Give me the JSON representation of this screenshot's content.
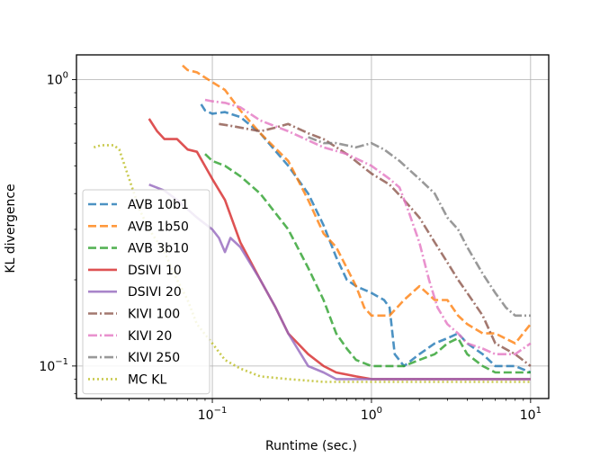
{
  "chart_data": {
    "type": "line",
    "xlabel": "Runtime (sec.)",
    "ylabel": "KL divergence",
    "xscale": "log",
    "yscale": "log",
    "xlim": [
      0.014,
      13
    ],
    "ylim": [
      0.077,
      1.22
    ],
    "grid": true,
    "legend_position": "lower-left",
    "x_ticks": [
      {
        "value": 0.1,
        "base": "10",
        "exp": "−1"
      },
      {
        "value": 1,
        "base": "10",
        "exp": "0"
      },
      {
        "value": 10,
        "base": "10",
        "exp": "1"
      }
    ],
    "y_ticks": [
      {
        "value": 0.1,
        "base": "10",
        "exp": "−1"
      },
      {
        "value": 1,
        "base": "10",
        "exp": "0"
      }
    ],
    "series": [
      {
        "name": "AVB 10b1",
        "color": "#1f77b4",
        "dash": "dashed",
        "points": [
          [
            0.085,
            0.82
          ],
          [
            0.09,
            0.78
          ],
          [
            0.1,
            0.76
          ],
          [
            0.12,
            0.77
          ],
          [
            0.15,
            0.74
          ],
          [
            0.2,
            0.65
          ],
          [
            0.3,
            0.5
          ],
          [
            0.4,
            0.4
          ],
          [
            0.5,
            0.31
          ],
          [
            0.6,
            0.24
          ],
          [
            0.7,
            0.2
          ],
          [
            0.8,
            0.19
          ],
          [
            1.0,
            0.18
          ],
          [
            1.2,
            0.17
          ],
          [
            1.3,
            0.16
          ],
          [
            1.4,
            0.11
          ],
          [
            1.6,
            0.1
          ],
          [
            2.0,
            0.11
          ],
          [
            2.5,
            0.12
          ],
          [
            3.0,
            0.125
          ],
          [
            3.5,
            0.13
          ],
          [
            4.0,
            0.12
          ],
          [
            5.0,
            0.11
          ],
          [
            6.0,
            0.1
          ],
          [
            8.0,
            0.1
          ],
          [
            10.0,
            0.095
          ]
        ]
      },
      {
        "name": "AVB 1b50",
        "color": "#ff7f0e",
        "dash": "dashed",
        "points": [
          [
            0.065,
            1.12
          ],
          [
            0.07,
            1.08
          ],
          [
            0.08,
            1.06
          ],
          [
            0.1,
            0.98
          ],
          [
            0.12,
            0.92
          ],
          [
            0.15,
            0.78
          ],
          [
            0.2,
            0.65
          ],
          [
            0.3,
            0.52
          ],
          [
            0.4,
            0.38
          ],
          [
            0.5,
            0.29
          ],
          [
            0.6,
            0.26
          ],
          [
            0.7,
            0.22
          ],
          [
            0.8,
            0.19
          ],
          [
            0.9,
            0.16
          ],
          [
            1.0,
            0.15
          ],
          [
            1.3,
            0.15
          ],
          [
            1.6,
            0.17
          ],
          [
            2.0,
            0.19
          ],
          [
            2.5,
            0.17
          ],
          [
            3.0,
            0.17
          ],
          [
            3.5,
            0.15
          ],
          [
            4.0,
            0.14
          ],
          [
            5.0,
            0.13
          ],
          [
            6.0,
            0.13
          ],
          [
            8.0,
            0.12
          ],
          [
            10.0,
            0.14
          ]
        ]
      },
      {
        "name": "AVB 3b10",
        "color": "#2ca02c",
        "dash": "dashed",
        "points": [
          [
            0.09,
            0.55
          ],
          [
            0.1,
            0.52
          ],
          [
            0.12,
            0.5
          ],
          [
            0.15,
            0.46
          ],
          [
            0.2,
            0.4
          ],
          [
            0.3,
            0.3
          ],
          [
            0.4,
            0.22
          ],
          [
            0.5,
            0.17
          ],
          [
            0.6,
            0.13
          ],
          [
            0.7,
            0.115
          ],
          [
            0.8,
            0.105
          ],
          [
            1.0,
            0.1
          ],
          [
            1.3,
            0.1
          ],
          [
            1.6,
            0.1
          ],
          [
            2.0,
            0.105
          ],
          [
            2.5,
            0.11
          ],
          [
            3.0,
            0.12
          ],
          [
            3.5,
            0.125
          ],
          [
            4.0,
            0.11
          ],
          [
            5.0,
            0.1
          ],
          [
            6.0,
            0.095
          ],
          [
            8.0,
            0.095
          ],
          [
            10.0,
            0.095
          ]
        ]
      },
      {
        "name": "DSIVI 10",
        "color": "#d62728",
        "dash": "solid",
        "points": [
          [
            0.04,
            0.73
          ],
          [
            0.045,
            0.66
          ],
          [
            0.05,
            0.62
          ],
          [
            0.06,
            0.62
          ],
          [
            0.07,
            0.57
          ],
          [
            0.08,
            0.56
          ],
          [
            0.1,
            0.45
          ],
          [
            0.12,
            0.38
          ],
          [
            0.15,
            0.27
          ],
          [
            0.2,
            0.2
          ],
          [
            0.25,
            0.16
          ],
          [
            0.3,
            0.13
          ],
          [
            0.4,
            0.11
          ],
          [
            0.5,
            0.1
          ],
          [
            0.6,
            0.095
          ],
          [
            0.8,
            0.092
          ],
          [
            1.0,
            0.09
          ],
          [
            2.0,
            0.09
          ],
          [
            5.0,
            0.09
          ],
          [
            10.0,
            0.09
          ]
        ]
      },
      {
        "name": "DSIVI 20",
        "color": "#9467bd",
        "dash": "solid",
        "points": [
          [
            0.04,
            0.43
          ],
          [
            0.05,
            0.41
          ],
          [
            0.06,
            0.38
          ],
          [
            0.08,
            0.33
          ],
          [
            0.1,
            0.3
          ],
          [
            0.11,
            0.28
          ],
          [
            0.12,
            0.25
          ],
          [
            0.13,
            0.28
          ],
          [
            0.15,
            0.26
          ],
          [
            0.2,
            0.2
          ],
          [
            0.25,
            0.16
          ],
          [
            0.3,
            0.13
          ],
          [
            0.4,
            0.1
          ],
          [
            0.5,
            0.095
          ],
          [
            0.6,
            0.09
          ],
          [
            0.8,
            0.09
          ],
          [
            1.0,
            0.09
          ],
          [
            2.0,
            0.09
          ],
          [
            5.0,
            0.09
          ],
          [
            10.0,
            0.09
          ]
        ]
      },
      {
        "name": "KIVI 100",
        "color": "#8c564b",
        "dash": "dashdot",
        "points": [
          [
            0.11,
            0.7
          ],
          [
            0.13,
            0.69
          ],
          [
            0.15,
            0.68
          ],
          [
            0.2,
            0.66
          ],
          [
            0.25,
            0.68
          ],
          [
            0.3,
            0.7
          ],
          [
            0.4,
            0.65
          ],
          [
            0.5,
            0.62
          ],
          [
            0.7,
            0.55
          ],
          [
            1.0,
            0.47
          ],
          [
            1.3,
            0.43
          ],
          [
            1.6,
            0.38
          ],
          [
            2.0,
            0.33
          ],
          [
            2.5,
            0.27
          ],
          [
            3.0,
            0.23
          ],
          [
            3.5,
            0.2
          ],
          [
            4.0,
            0.18
          ],
          [
            5.0,
            0.15
          ],
          [
            6.0,
            0.12
          ],
          [
            8.0,
            0.11
          ],
          [
            10.0,
            0.1
          ]
        ]
      },
      {
        "name": "KIVI 20",
        "color": "#e377c2",
        "dash": "dashdot",
        "points": [
          [
            0.09,
            0.85
          ],
          [
            0.1,
            0.84
          ],
          [
            0.12,
            0.83
          ],
          [
            0.15,
            0.8
          ],
          [
            0.2,
            0.72
          ],
          [
            0.3,
            0.66
          ],
          [
            0.5,
            0.58
          ],
          [
            0.7,
            0.55
          ],
          [
            1.0,
            0.5
          ],
          [
            1.3,
            0.45
          ],
          [
            1.5,
            0.42
          ],
          [
            1.7,
            0.35
          ],
          [
            2.0,
            0.27
          ],
          [
            2.3,
            0.2
          ],
          [
            2.6,
            0.16
          ],
          [
            3.0,
            0.14
          ],
          [
            3.5,
            0.13
          ],
          [
            4.0,
            0.12
          ],
          [
            5.0,
            0.115
          ],
          [
            6.0,
            0.11
          ],
          [
            8.0,
            0.11
          ],
          [
            10.0,
            0.12
          ]
        ]
      },
      {
        "name": "KIVI 250",
        "color": "#7f7f7f",
        "dash": "dashdot",
        "points": [
          [
            0.4,
            0.63
          ],
          [
            0.5,
            0.6
          ],
          [
            0.6,
            0.6
          ],
          [
            0.8,
            0.58
          ],
          [
            1.0,
            0.6
          ],
          [
            1.2,
            0.57
          ],
          [
            1.5,
            0.52
          ],
          [
            2.0,
            0.45
          ],
          [
            2.5,
            0.4
          ],
          [
            3.0,
            0.33
          ],
          [
            3.5,
            0.3
          ],
          [
            4.0,
            0.26
          ],
          [
            5.0,
            0.21
          ],
          [
            6.0,
            0.18
          ],
          [
            7.0,
            0.16
          ],
          [
            8.0,
            0.15
          ],
          [
            10.0,
            0.15
          ]
        ]
      },
      {
        "name": "MC KL",
        "color": "#bcbd22",
        "dash": "dotted",
        "points": [
          [
            0.018,
            0.58
          ],
          [
            0.02,
            0.59
          ],
          [
            0.024,
            0.59
          ],
          [
            0.026,
            0.57
          ],
          [
            0.03,
            0.45
          ],
          [
            0.035,
            0.35
          ],
          [
            0.04,
            0.3
          ],
          [
            0.05,
            0.25
          ],
          [
            0.06,
            0.2
          ],
          [
            0.07,
            0.17
          ],
          [
            0.08,
            0.14
          ],
          [
            0.1,
            0.12
          ],
          [
            0.12,
            0.105
          ],
          [
            0.15,
            0.098
          ],
          [
            0.2,
            0.092
          ],
          [
            0.3,
            0.09
          ],
          [
            0.5,
            0.088
          ],
          [
            1.0,
            0.088
          ],
          [
            2.0,
            0.088
          ],
          [
            5.0,
            0.088
          ],
          [
            10.0,
            0.088
          ]
        ]
      }
    ]
  }
}
